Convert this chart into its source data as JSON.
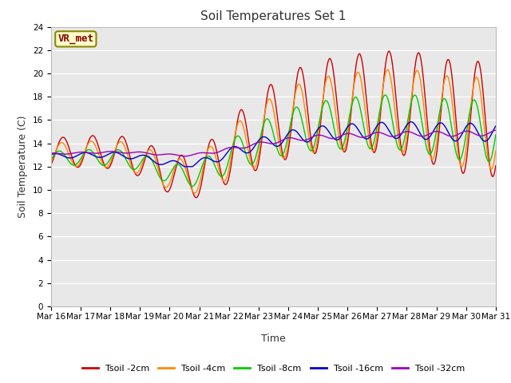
{
  "title": "Soil Temperatures Set 1",
  "xlabel": "Time",
  "ylabel": "Soil Temperature (C)",
  "xlim": [
    0,
    360
  ],
  "ylim": [
    0,
    24
  ],
  "yticks": [
    0,
    2,
    4,
    6,
    8,
    10,
    12,
    14,
    16,
    18,
    20,
    22,
    24
  ],
  "xtick_labels": [
    "Mar 16",
    "Mar 17",
    "Mar 18",
    "Mar 19",
    "Mar 20",
    "Mar 21",
    "Mar 22",
    "Mar 23",
    "Mar 24",
    "Mar 25",
    "Mar 26",
    "Mar 27",
    "Mar 28",
    "Mar 29",
    "Mar 30",
    "Mar 31"
  ],
  "xtick_positions": [
    0,
    24,
    48,
    72,
    96,
    120,
    144,
    168,
    192,
    216,
    240,
    264,
    288,
    312,
    336,
    360
  ],
  "background_color": "#e8e8e8",
  "fig_background": "#ffffff",
  "colors": {
    "Tsoil -2cm": "#cc0000",
    "Tsoil -4cm": "#ff8800",
    "Tsoil -8cm": "#00cc00",
    "Tsoil -16cm": "#0000cc",
    "Tsoil -32cm": "#9900bb"
  },
  "annotation_text": "VR_met",
  "annotation_bg": "#ffffcc",
  "annotation_border": "#888800",
  "title_fontsize": 11,
  "axis_label_fontsize": 9,
  "tick_fontsize": 7.5
}
